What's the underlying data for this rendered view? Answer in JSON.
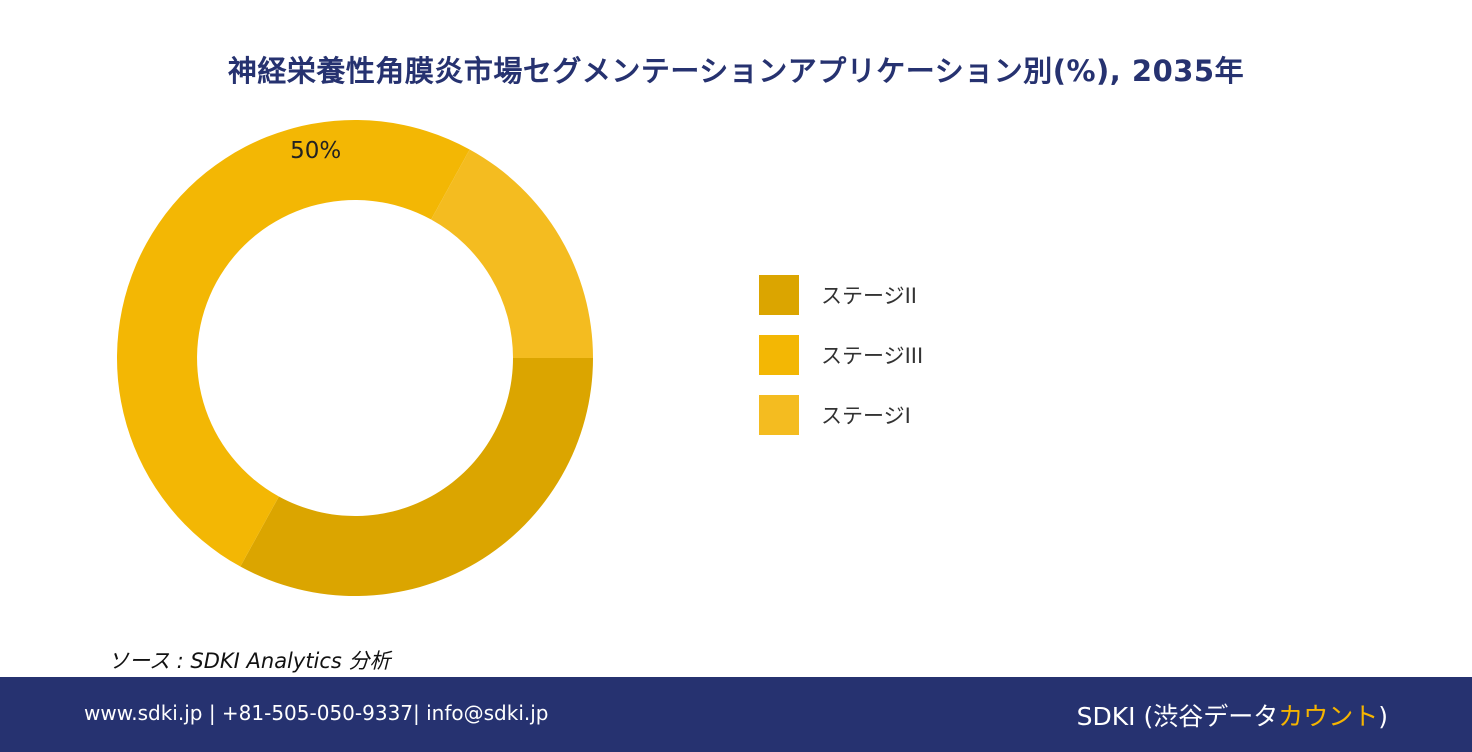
{
  "chart_data": {
    "type": "pie",
    "title": "神経栄養性角膜炎市場セグメンテーションアプリケーション別(%), 2035年",
    "categories": [
      "ステージII",
      "ステージIII",
      "ステージI"
    ],
    "values": [
      33,
      50,
      17
    ],
    "data_labels": [
      "",
      "50%",
      ""
    ],
    "colors": [
      "#DBA500",
      "#F3B704",
      "#F4BC20"
    ],
    "donut": true,
    "legend_position": "right"
  },
  "source": "ソース : SDKI Analytics 分析",
  "footer": {
    "contact": "www.sdki.jp | +81-505-050-9337| info@sdki.jp",
    "brand_prefix": "SDKI (渋谷データ",
    "brand_accent": "カウント",
    "brand_suffix": ")"
  }
}
